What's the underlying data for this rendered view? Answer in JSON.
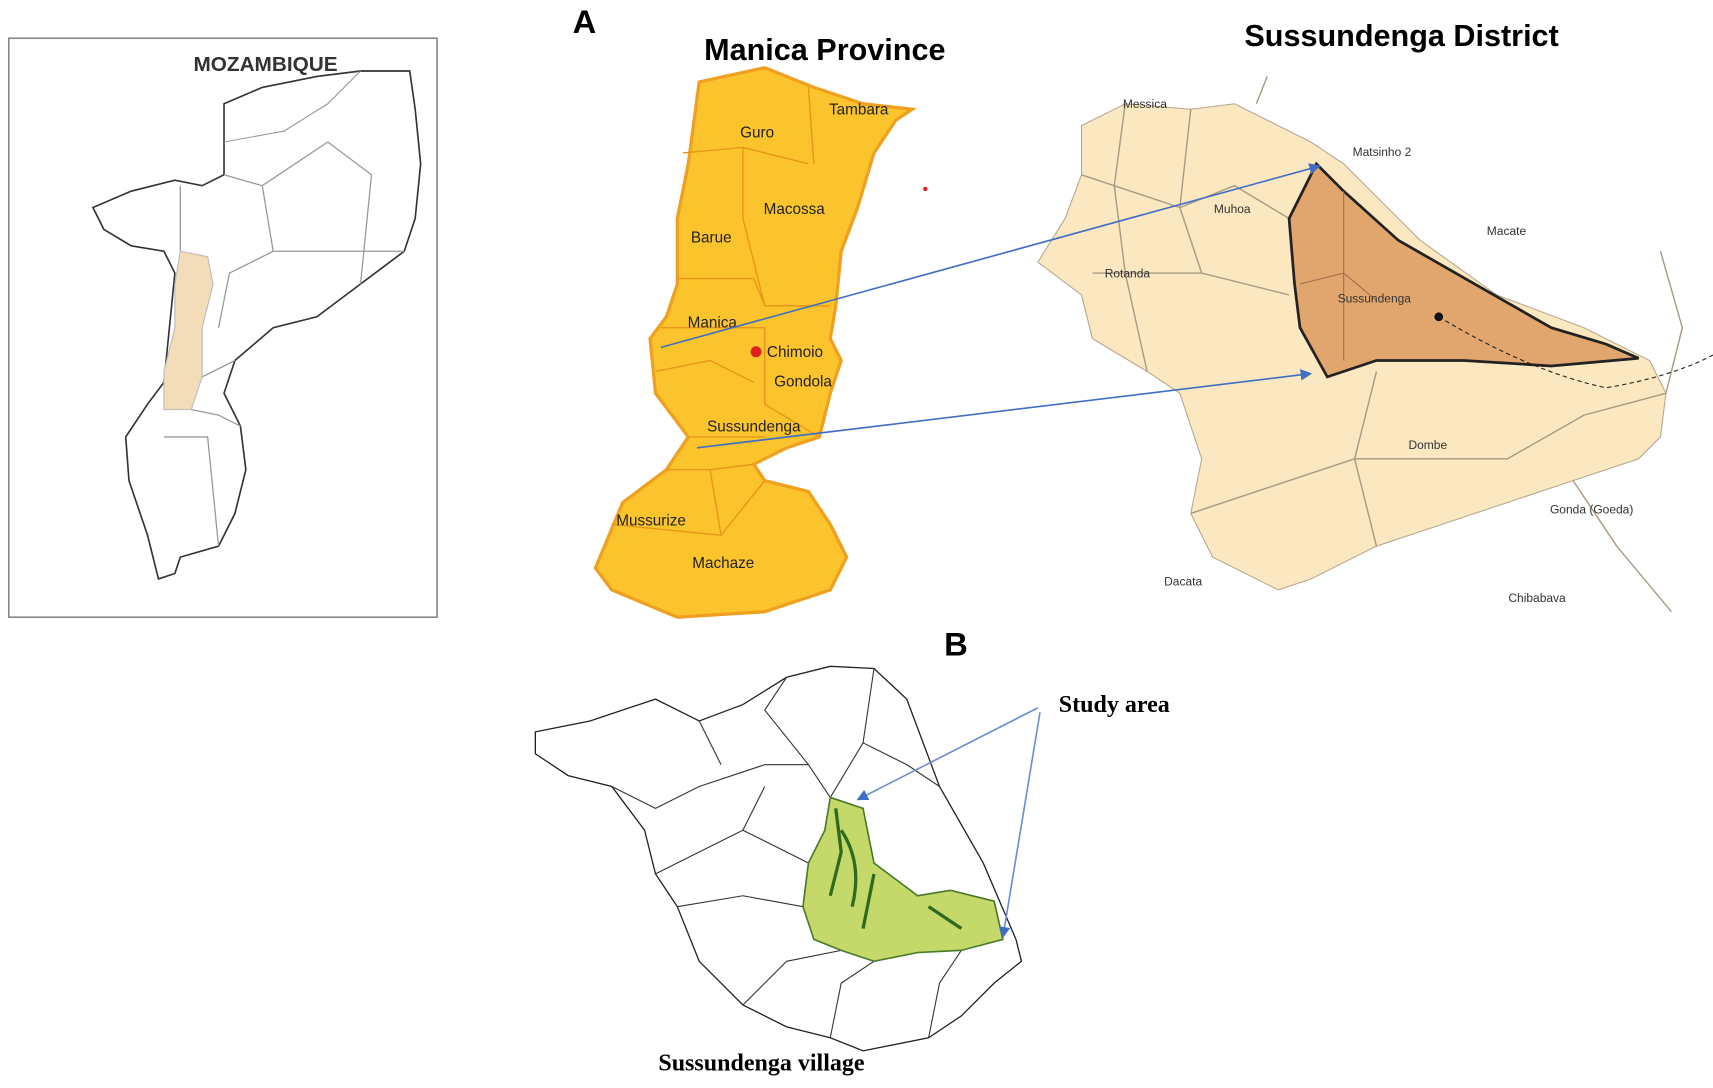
{
  "panel_labels": [
    "A",
    "B"
  ],
  "country_map": {
    "title": "MOZAMBIQUE"
  },
  "province_map": {
    "title": "Manica Province",
    "districts": [
      "Guro",
      "Tambara",
      "Macossa",
      "Barue",
      "Manica",
      "Chimoio",
      "Gondola",
      "Sussundenga",
      "Mussurize",
      "Machaze"
    ]
  },
  "district_map": {
    "title": "Sussundenga District",
    "places": [
      "Messica",
      "Matsinho 2",
      "Muhoa",
      "Macate",
      "Rotanda",
      "Sussundenga",
      "Dombe",
      "Gonda (Goeda)",
      "Dacata",
      "Chibabava"
    ]
  },
  "study_map": {
    "callout": "Study area",
    "caption": "Sussundenga village"
  }
}
